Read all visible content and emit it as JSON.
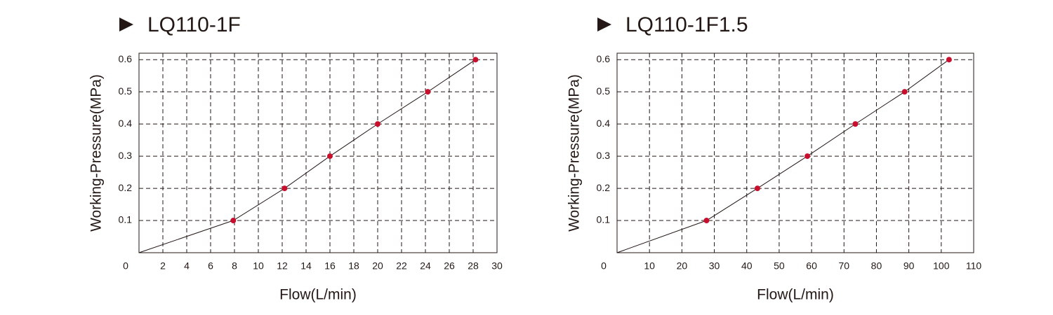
{
  "chart_data": [
    {
      "type": "line",
      "title": "LQ110-1F",
      "x_label": "Flow(L/min)",
      "y_label": "Working-Pressure(MPa)",
      "x": [
        0,
        7.9,
        12.2,
        16,
        20,
        24.2,
        28.2
      ],
      "series": [
        {
          "color": "#c8102e",
          "values": [
            0,
            0.1,
            0.2,
            0.3,
            0.4,
            0.5,
            0.6
          ]
        }
      ],
      "xlim": [
        0,
        30
      ],
      "xticks": [
        0,
        2,
        4,
        6,
        8,
        10,
        12,
        14,
        16,
        18,
        20,
        22,
        24,
        26,
        28,
        30
      ],
      "ylim": [
        0,
        0.62
      ],
      "yticks": [
        0.1,
        0.2,
        0.3,
        0.4,
        0.5,
        0.6
      ],
      "grid": true
    },
    {
      "type": "line",
      "title": "LQ110-1F1.5",
      "x_label": "Flow(L/min)",
      "y_label": "Working-Pressure(MPa)",
      "x": [
        0,
        27.6,
        43.3,
        58.7,
        73.5,
        88.7,
        102.4
      ],
      "series": [
        {
          "color": "#c8102e",
          "values": [
            0,
            0.1,
            0.2,
            0.3,
            0.4,
            0.5,
            0.6
          ]
        }
      ],
      "xlim": [
        0,
        110
      ],
      "xticks": [
        0,
        10,
        20,
        30,
        40,
        50,
        60,
        70,
        80,
        90,
        100,
        110
      ],
      "ylim": [
        0,
        0.62
      ],
      "yticks": [
        0.1,
        0.2,
        0.3,
        0.4,
        0.5,
        0.6
      ],
      "grid": true
    }
  ]
}
